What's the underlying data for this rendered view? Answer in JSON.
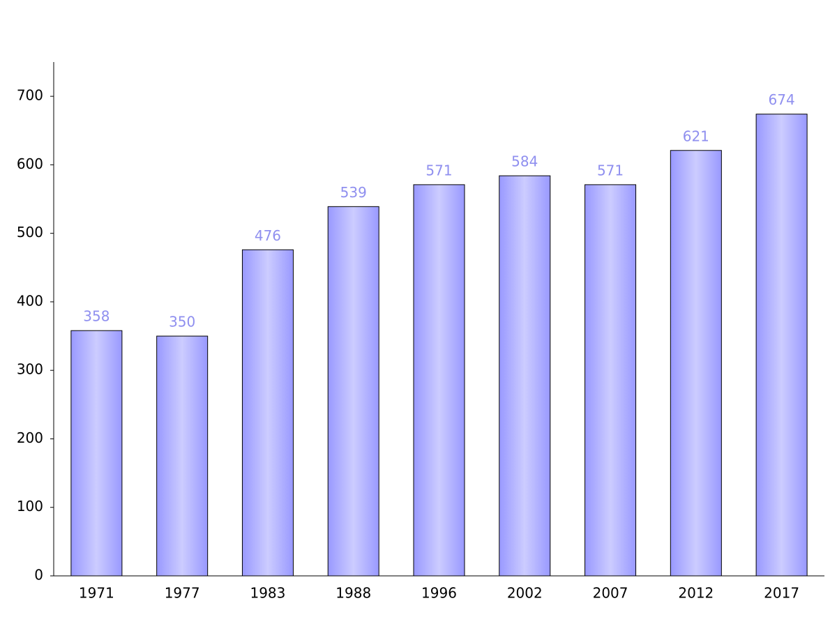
{
  "chart_data": {
    "type": "bar",
    "categories": [
      "1971",
      "1977",
      "1983",
      "1988",
      "1996",
      "2002",
      "2007",
      "2012",
      "2017"
    ],
    "values": [
      358,
      350,
      476,
      539,
      571,
      584,
      571,
      621,
      674
    ],
    "color": "#9999ff",
    "ylim": [
      0,
      750
    ],
    "yticks": [
      0,
      100,
      200,
      300,
      400,
      500,
      600,
      700
    ],
    "grid": false
  }
}
